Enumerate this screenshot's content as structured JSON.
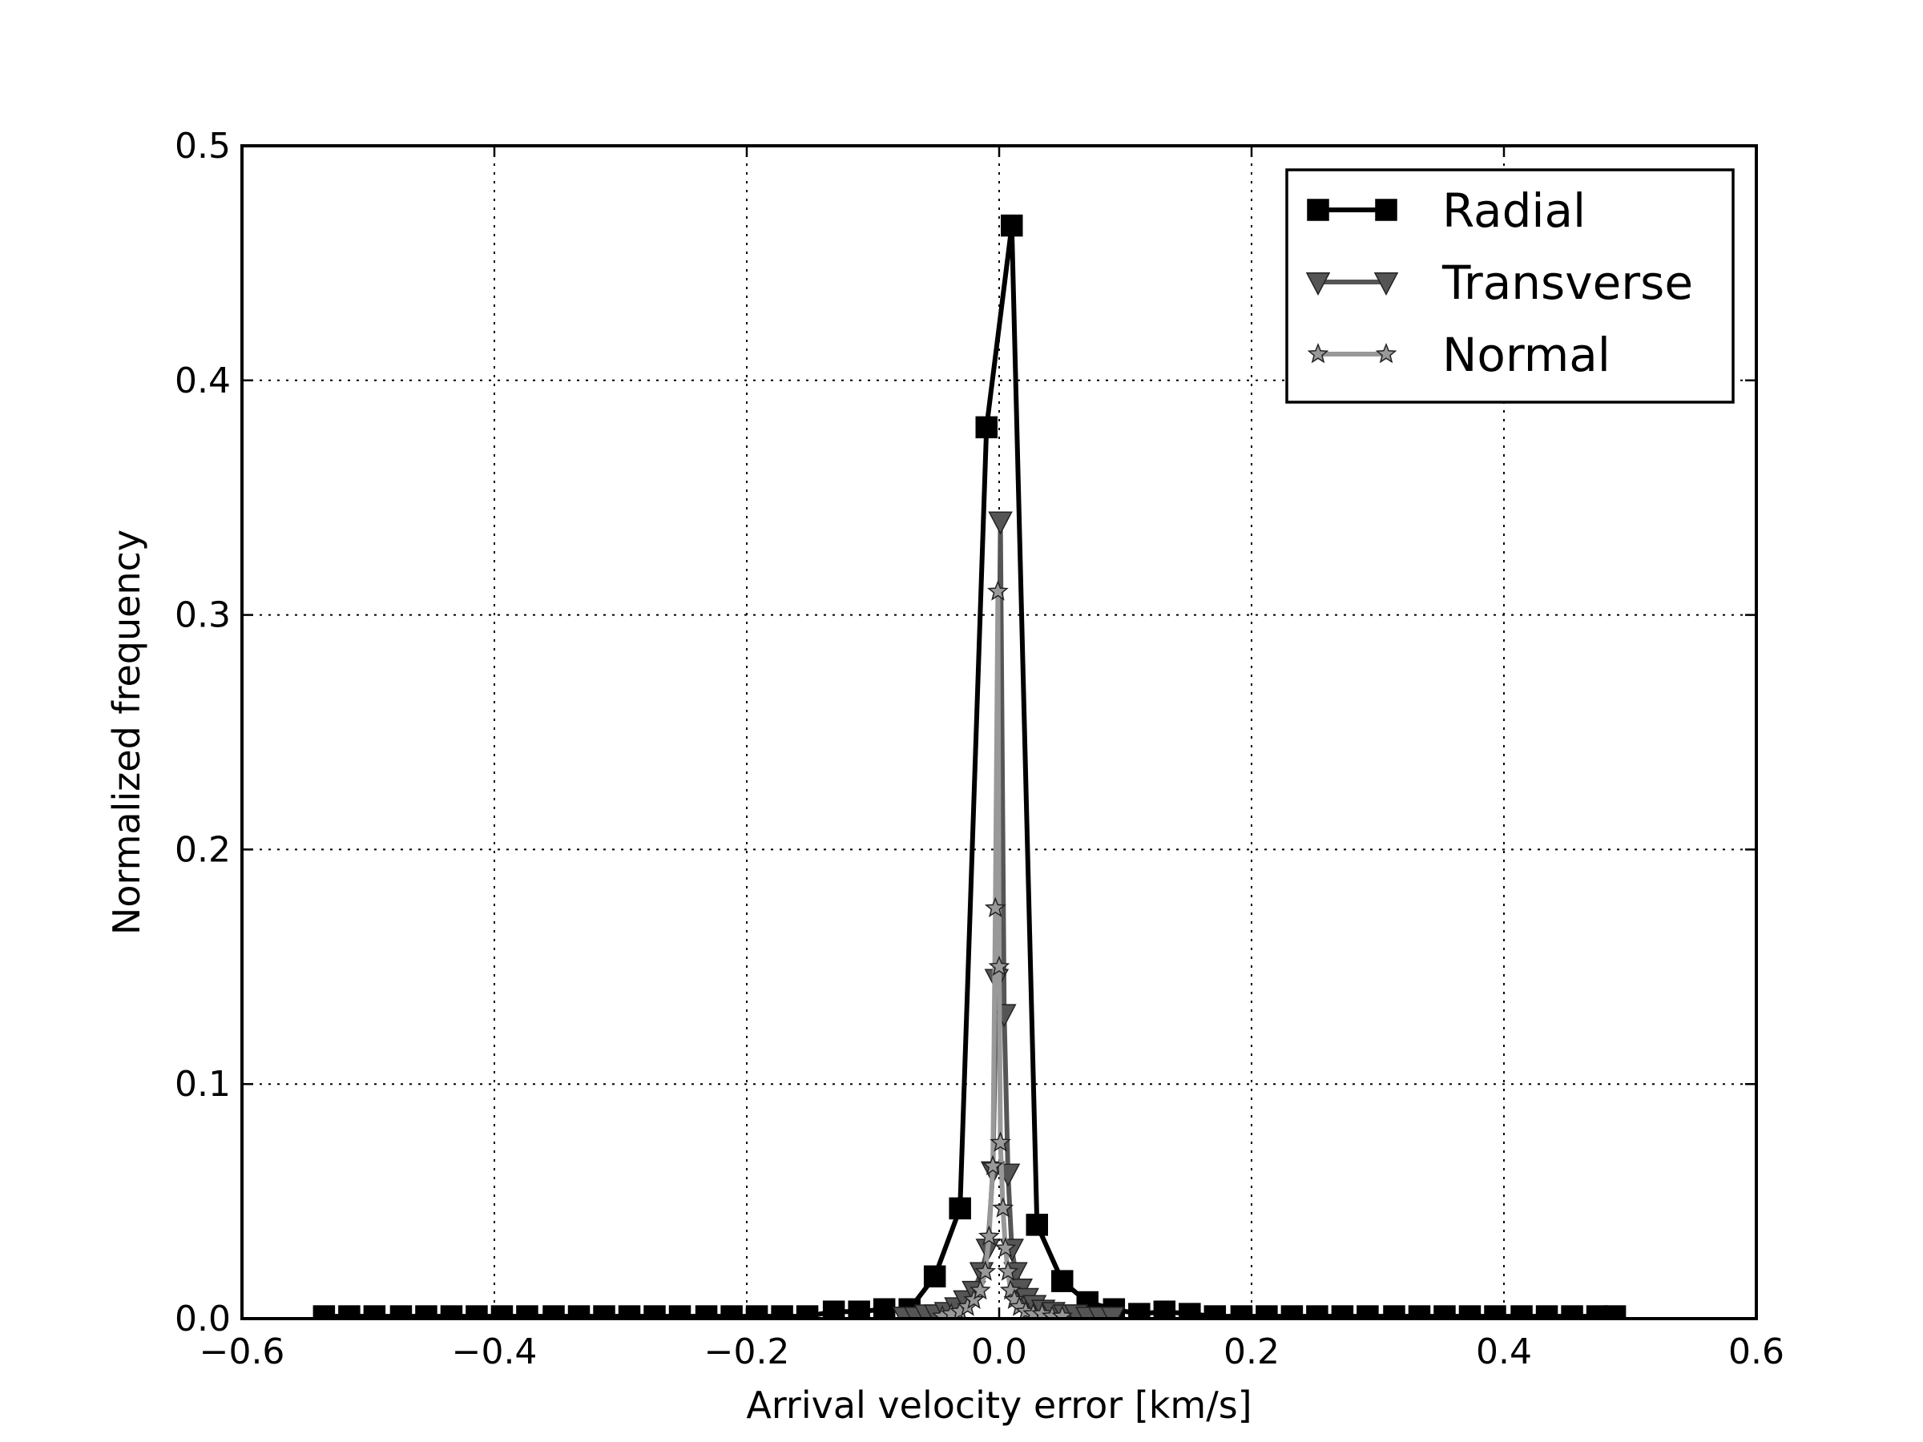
{
  "chart_data": {
    "type": "line",
    "title": "",
    "xlabel": "Arrival velocity error [km/s]",
    "ylabel": "Normalized frequency",
    "xlim": [
      -0.6,
      0.6
    ],
    "ylim": [
      0,
      0.5
    ],
    "xticks": [
      -0.6,
      -0.4,
      -0.2,
      0.0,
      0.2,
      0.4,
      0.6
    ],
    "yticks": [
      0.0,
      0.1,
      0.2,
      0.3,
      0.4,
      0.5
    ],
    "xtick_labels": [
      "−0.6",
      "−0.4",
      "−0.2",
      "0.0",
      "0.2",
      "0.4",
      "0.6"
    ],
    "ytick_labels": [
      "0.0",
      "0.1",
      "0.2",
      "0.3",
      "0.4",
      "0.5"
    ],
    "grid": true,
    "legend_position": "top-right",
    "series": [
      {
        "name": "Radial",
        "color": "#000000",
        "marker": "square",
        "x": [
          -0.535,
          -0.515,
          -0.495,
          -0.474,
          -0.454,
          -0.434,
          -0.414,
          -0.394,
          -0.374,
          -0.353,
          -0.333,
          -0.313,
          -0.293,
          -0.273,
          -0.253,
          -0.232,
          -0.212,
          -0.192,
          -0.172,
          -0.152,
          -0.131,
          -0.111,
          -0.091,
          -0.071,
          -0.051,
          -0.031,
          -0.01,
          0.01,
          0.03,
          0.05,
          0.07,
          0.091,
          0.111,
          0.131,
          0.151,
          0.171,
          0.192,
          0.212,
          0.232,
          0.252,
          0.272,
          0.292,
          0.313,
          0.333,
          0.353,
          0.373,
          0.393,
          0.414,
          0.434,
          0.454,
          0.474,
          0.488
        ],
        "y": [
          0.001,
          0.001,
          0.001,
          0.001,
          0.001,
          0.001,
          0.001,
          0.001,
          0.001,
          0.001,
          0.001,
          0.001,
          0.001,
          0.001,
          0.001,
          0.001,
          0.001,
          0.001,
          0.001,
          0.001,
          0.003,
          0.003,
          0.004,
          0.004,
          0.018,
          0.047,
          0.38,
          0.466,
          0.04,
          0.016,
          0.007,
          0.004,
          0.002,
          0.003,
          0.002,
          0.001,
          0.001,
          0.001,
          0.001,
          0.001,
          0.001,
          0.001,
          0.001,
          0.001,
          0.001,
          0.001,
          0.001,
          0.001,
          0.001,
          0.001,
          0.001,
          0.001
        ]
      },
      {
        "name": "Transverse",
        "color": "#555555",
        "marker": "triangle-down",
        "x": [
          -0.075,
          -0.066,
          -0.058,
          -0.05,
          -0.042,
          -0.034,
          -0.027,
          -0.02,
          -0.014,
          -0.009,
          -0.005,
          -0.002,
          0.001,
          0.004,
          0.007,
          0.01,
          0.013,
          0.017,
          0.022,
          0.028,
          0.035,
          0.043,
          0.052,
          0.061,
          0.07,
          0.08,
          0.09
        ],
        "y": [
          0.001,
          0.001,
          0.002,
          0.002,
          0.003,
          0.005,
          0.008,
          0.012,
          0.02,
          0.03,
          0.063,
          0.145,
          0.34,
          0.13,
          0.062,
          0.03,
          0.02,
          0.013,
          0.009,
          0.006,
          0.004,
          0.003,
          0.002,
          0.002,
          0.001,
          0.001,
          0.001
        ]
      },
      {
        "name": "Normal",
        "color": "#999999",
        "marker": "star",
        "x": [
          -0.045,
          -0.038,
          -0.031,
          -0.025,
          -0.02,
          -0.015,
          -0.011,
          -0.008,
          -0.005,
          -0.003,
          -0.001,
          0.0,
          0.001,
          0.003,
          0.005,
          0.007,
          0.009,
          0.012,
          0.016,
          0.021,
          0.027,
          0.034,
          0.042,
          0.05
        ],
        "y": [
          0.001,
          0.002,
          0.003,
          0.005,
          0.008,
          0.012,
          0.02,
          0.035,
          0.065,
          0.175,
          0.31,
          0.15,
          0.075,
          0.047,
          0.03,
          0.02,
          0.012,
          0.008,
          0.005,
          0.003,
          0.002,
          0.002,
          0.001,
          0.001
        ]
      }
    ]
  }
}
